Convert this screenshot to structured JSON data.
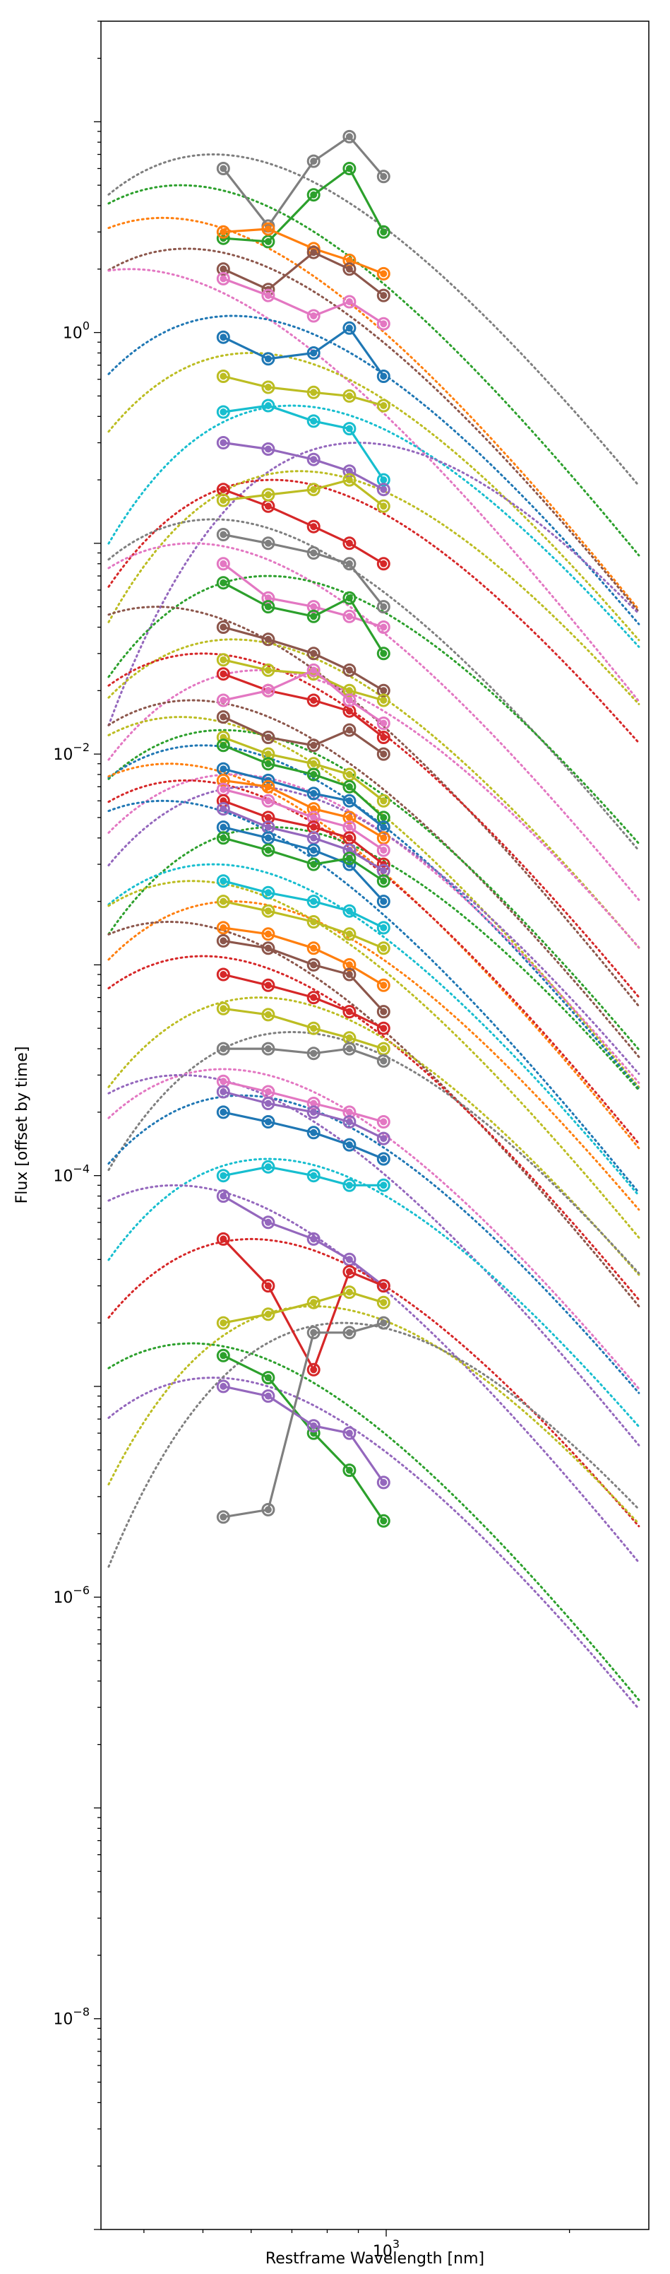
{
  "chart_data": {
    "type": "line",
    "xlabel": "Restframe Wavelength [nm]",
    "ylabel": "Flux [offset by time]",
    "xscale": "log",
    "yscale": "log",
    "xlim": [
      340,
      2700
    ],
    "ylim": [
      1e-09,
      30
    ],
    "x_ticks": [
      {
        "value": 1000,
        "label": "10",
        "exp": "3"
      }
    ],
    "y_ticks": [
      {
        "value": 1.0,
        "label": "10",
        "exp": "0"
      },
      {
        "value": 0.01,
        "label": "10",
        "exp": "−2"
      },
      {
        "value": 0.0001,
        "label": "10",
        "exp": "−4"
      },
      {
        "value": 1e-06,
        "label": "10",
        "exp": "−6"
      },
      {
        "value": 1e-08,
        "label": "10",
        "exp": "−8"
      }
    ],
    "grid": false,
    "legend": "none",
    "band_wavelengths_nm": [
      540,
      640,
      760,
      870,
      990
    ],
    "palette": [
      "#1f77b4",
      "#ff7f0e",
      "#2ca02c",
      "#d62728",
      "#9467bd",
      "#8c564b",
      "#e377c2",
      "#7f7f7f",
      "#bcbd22",
      "#17becf"
    ],
    "series_note_omitted": true,
    "series": [
      {
        "color": "#7f7f7f",
        "values": [
          6.0,
          3.2,
          6.5,
          8.5,
          5.5
        ],
        "fit_peak_nm": 520,
        "fit_peak_flux": 7.0
      },
      {
        "color": "#2ca02c",
        "values": [
          2.8,
          2.7,
          4.5,
          6.0,
          3.0
        ],
        "fit_peak_nm": 460,
        "fit_peak_flux": 5.0
      },
      {
        "color": "#ff7f0e",
        "values": [
          3.0,
          3.1,
          2.5,
          2.2,
          1.9
        ],
        "fit_peak_nm": 430,
        "fit_peak_flux": 3.5
      },
      {
        "color": "#8c564b",
        "values": [
          2.0,
          1.6,
          2.4,
          2.0,
          1.5
        ],
        "fit_peak_nm": 470,
        "fit_peak_flux": 2.5
      },
      {
        "color": "#e377c2",
        "values": [
          1.8,
          1.5,
          1.2,
          1.4,
          1.1
        ],
        "fit_peak_nm": 380,
        "fit_peak_flux": 2.0
      },
      {
        "color": "#1f77b4",
        "values": [
          0.95,
          0.75,
          0.8,
          1.05,
          0.62
        ],
        "fit_peak_nm": 560,
        "fit_peak_flux": 1.2
      },
      {
        "color": "#bcbd22",
        "values": [
          0.62,
          0.55,
          0.52,
          0.5,
          0.45
        ],
        "fit_peak_nm": 600,
        "fit_peak_flux": 0.8
      },
      {
        "color": "#17becf",
        "values": [
          0.42,
          0.45,
          0.38,
          0.35,
          0.2
        ],
        "fit_peak_nm": 700,
        "fit_peak_flux": 0.45
      },
      {
        "color": "#9467bd",
        "values": [
          0.3,
          0.28,
          0.25,
          0.22,
          0.18
        ],
        "fit_peak_nm": 900,
        "fit_peak_flux": 0.3
      },
      {
        "color": "#d62728",
        "values": [
          0.18,
          0.15,
          0.12,
          0.1,
          0.08
        ],
        "fit_peak_nm": 650,
        "fit_peak_flux": 0.2
      },
      {
        "color": "#bcbd22",
        "values": [
          0.16,
          0.17,
          0.18,
          0.2,
          0.15
        ],
        "fit_peak_nm": 720,
        "fit_peak_flux": 0.22
      },
      {
        "color": "#7f7f7f",
        "values": [
          0.11,
          0.1,
          0.09,
          0.08,
          0.05
        ],
        "fit_peak_nm": 520,
        "fit_peak_flux": 0.13
      },
      {
        "color": "#e377c2",
        "values": [
          0.08,
          0.055,
          0.05,
          0.045,
          0.04
        ],
        "fit_peak_nm": 480,
        "fit_peak_flux": 0.1
      },
      {
        "color": "#2ca02c",
        "values": [
          0.065,
          0.05,
          0.045,
          0.055,
          0.03
        ],
        "fit_peak_nm": 640,
        "fit_peak_flux": 0.07
      },
      {
        "color": "#8c564b",
        "values": [
          0.04,
          0.035,
          0.03,
          0.025,
          0.02
        ],
        "fit_peak_nm": 420,
        "fit_peak_flux": 0.05
      },
      {
        "color": "#bcbd22",
        "values": [
          0.028,
          0.025,
          0.024,
          0.02,
          0.018
        ],
        "fit_peak_nm": 560,
        "fit_peak_flux": 0.035
      },
      {
        "color": "#d62728",
        "values": [
          0.024,
          0.02,
          0.018,
          0.016,
          0.012
        ],
        "fit_peak_nm": 500,
        "fit_peak_flux": 0.03
      },
      {
        "color": "#e377c2",
        "values": [
          0.018,
          0.02,
          0.025,
          0.018,
          0.014
        ],
        "fit_peak_nm": 620,
        "fit_peak_flux": 0.025
      },
      {
        "color": "#8c564b",
        "values": [
          0.015,
          0.012,
          0.011,
          0.013,
          0.01
        ],
        "fit_peak_nm": 480,
        "fit_peak_flux": 0.018
      },
      {
        "color": "#bcbd22",
        "values": [
          0.012,
          0.01,
          0.009,
          0.008,
          0.006
        ],
        "fit_peak_nm": 460,
        "fit_peak_flux": 0.015
      },
      {
        "color": "#2ca02c",
        "values": [
          0.011,
          0.009,
          0.008,
          0.007,
          0.005
        ],
        "fit_peak_nm": 540,
        "fit_peak_flux": 0.013
      },
      {
        "color": "#1f77b4",
        "values": [
          0.0085,
          0.0075,
          0.0065,
          0.006,
          0.0045
        ],
        "fit_peak_nm": 500,
        "fit_peak_flux": 0.011
      },
      {
        "color": "#ff7f0e",
        "values": [
          0.0075,
          0.007,
          0.0055,
          0.005,
          0.004
        ],
        "fit_peak_nm": 440,
        "fit_peak_flux": 0.009
      },
      {
        "color": "#e377c2",
        "values": [
          0.0068,
          0.006,
          0.005,
          0.0045,
          0.0035
        ],
        "fit_peak_nm": 560,
        "fit_peak_flux": 0.008
      },
      {
        "color": "#d62728",
        "values": [
          0.006,
          0.005,
          0.0045,
          0.004,
          0.003
        ],
        "fit_peak_nm": 470,
        "fit_peak_flux": 0.0075
      },
      {
        "color": "#9467bd",
        "values": [
          0.0055,
          0.0045,
          0.004,
          0.0035,
          0.0028
        ],
        "fit_peak_nm": 600,
        "fit_peak_flux": 0.007
      },
      {
        "color": "#1f77b4",
        "values": [
          0.0045,
          0.004,
          0.0035,
          0.003,
          0.002
        ],
        "fit_peak_nm": 430,
        "fit_peak_flux": 0.006
      },
      {
        "color": "#2ca02c",
        "values": [
          0.004,
          0.0035,
          0.003,
          0.0032,
          0.0025
        ],
        "fit_peak_nm": 650,
        "fit_peak_flux": 0.0045
      },
      {
        "color": "#17becf",
        "values": [
          0.0025,
          0.0022,
          0.002,
          0.0018,
          0.0015
        ],
        "fit_peak_nm": 520,
        "fit_peak_flux": 0.003
      },
      {
        "color": "#bcbd22",
        "values": [
          0.002,
          0.0018,
          0.0016,
          0.0014,
          0.0012
        ],
        "fit_peak_nm": 480,
        "fit_peak_flux": 0.0025
      },
      {
        "color": "#ff7f0e",
        "values": [
          0.0015,
          0.0014,
          0.0012,
          0.001,
          0.0008
        ],
        "fit_peak_nm": 560,
        "fit_peak_flux": 0.002
      },
      {
        "color": "#8c564b",
        "values": [
          0.0013,
          0.0012,
          0.001,
          0.0009,
          0.0006
        ],
        "fit_peak_nm": 440,
        "fit_peak_flux": 0.0016
      },
      {
        "color": "#d62728",
        "values": [
          0.0009,
          0.0008,
          0.0007,
          0.0006,
          0.0005
        ],
        "fit_peak_nm": 500,
        "fit_peak_flux": 0.0011
      },
      {
        "color": "#bcbd22",
        "values": [
          0.00062,
          0.00058,
          0.0005,
          0.00045,
          0.0004
        ],
        "fit_peak_nm": 620,
        "fit_peak_flux": 0.0007
      },
      {
        "color": "#7f7f7f",
        "values": [
          0.0004,
          0.0004,
          0.00038,
          0.0004,
          0.00035
        ],
        "fit_peak_nm": 700,
        "fit_peak_flux": 0.00048
      },
      {
        "color": "#e377c2",
        "values": [
          0.00028,
          0.00025,
          0.00022,
          0.0002,
          0.00018
        ],
        "fit_peak_nm": 540,
        "fit_peak_flux": 0.00032
      },
      {
        "color": "#9467bd",
        "values": [
          0.00025,
          0.00022,
          0.0002,
          0.00018,
          0.00015
        ],
        "fit_peak_nm": 460,
        "fit_peak_flux": 0.0003
      },
      {
        "color": "#1f77b4",
        "values": [
          0.0002,
          0.00018,
          0.00016,
          0.00014,
          0.00012
        ],
        "fit_peak_nm": 580,
        "fit_peak_flux": 0.00024
      },
      {
        "color": "#17becf",
        "values": [
          0.0001,
          0.00011,
          0.0001,
          9e-05,
          9e-05
        ],
        "fit_peak_nm": 640,
        "fit_peak_flux": 0.00012
      },
      {
        "color": "#9467bd",
        "values": [
          8e-05,
          6e-05,
          5e-05,
          4e-05,
          3e-05
        ],
        "fit_peak_nm": 450,
        "fit_peak_flux": 9e-05
      },
      {
        "color": "#d62728",
        "values": [
          5e-05,
          3e-05,
          1.2e-05,
          3.5e-05,
          3e-05
        ],
        "fit_peak_nm": 600,
        "fit_peak_flux": 5e-05
      },
      {
        "color": "#bcbd22",
        "values": [
          2e-05,
          2.2e-05,
          2.5e-05,
          2.8e-05,
          2.5e-05
        ],
        "fit_peak_nm": 760,
        "fit_peak_flux": 2.4e-05
      },
      {
        "color": "#2ca02c",
        "values": [
          1.4e-05,
          1.1e-05,
          6e-06,
          4e-06,
          2.3e-06
        ],
        "fit_peak_nm": 480,
        "fit_peak_flux": 1.6e-05
      },
      {
        "color": "#9467bd",
        "values": [
          1e-05,
          9e-06,
          6.5e-06,
          6e-06,
          3.5e-06
        ],
        "fit_peak_nm": 520,
        "fit_peak_flux": 1.1e-05
      },
      {
        "color": "#7f7f7f",
        "values": [
          2.4e-06,
          2.6e-06,
          1.8e-05,
          1.8e-05,
          2e-05
        ],
        "fit_peak_nm": 850,
        "fit_peak_flux": 2e-05
      }
    ]
  }
}
